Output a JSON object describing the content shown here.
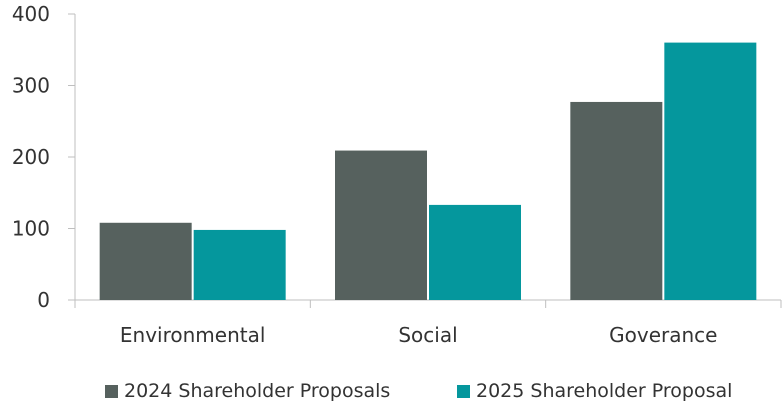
{
  "chart_data": {
    "type": "bar",
    "title": "",
    "xlabel": "",
    "ylabel": "",
    "categories": [
      "Environmental",
      "Social",
      "Goverance"
    ],
    "series": [
      {
        "name": "2024 Shareholder Proposals",
        "color": "#56615e",
        "values": [
          108,
          209,
          277
        ]
      },
      {
        "name": "2025 Shareholder Proposal",
        "color": "#05979d",
        "values": [
          98,
          133,
          360
        ]
      }
    ],
    "ylim": [
      0,
      400
    ],
    "yticks": [
      0,
      100,
      200,
      300,
      400
    ],
    "grid": false,
    "legend_position": "bottom"
  }
}
